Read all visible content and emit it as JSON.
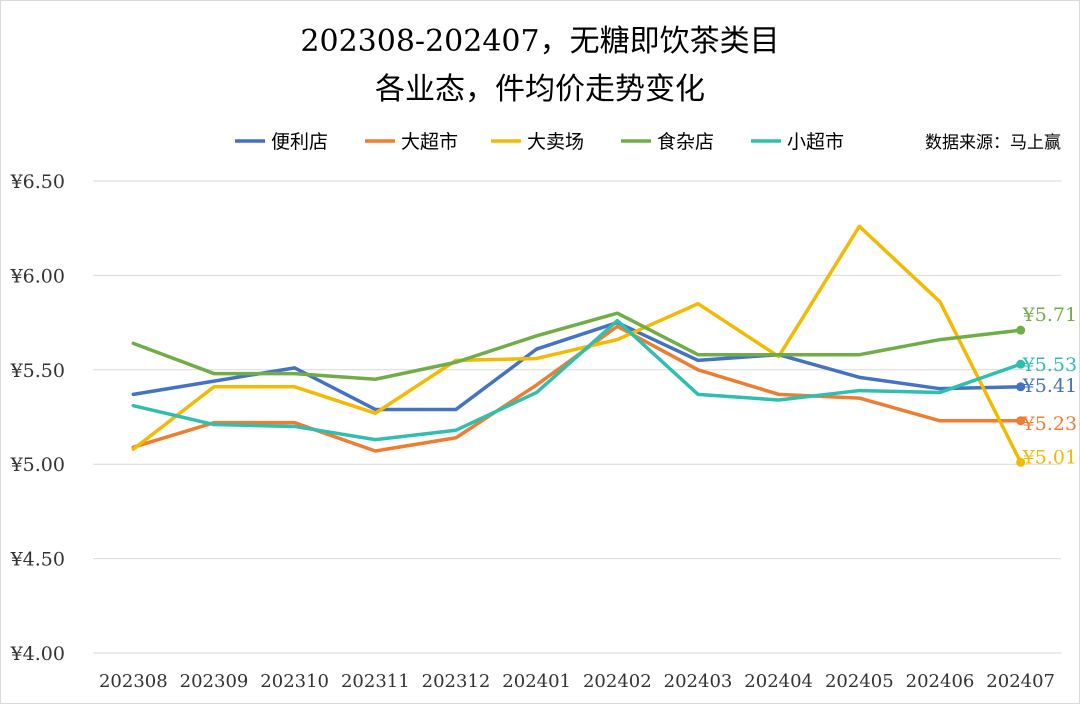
{
  "chart_data": {
    "type": "line",
    "title_line1": "202308-202407，无糖即饮茶类目",
    "title_line2": "各业态，件均价走势变化",
    "source": "数据来源：马上赢",
    "xlabel": "",
    "ylabel": "",
    "ylim": [
      4.0,
      6.5
    ],
    "yticks": [
      {
        "value": 6.5,
        "label": "¥6.50"
      },
      {
        "value": 6.0,
        "label": "¥6.00"
      },
      {
        "value": 5.5,
        "label": "¥5.50"
      },
      {
        "value": 5.0,
        "label": "¥5.00"
      },
      {
        "value": 4.5,
        "label": "¥4.50"
      },
      {
        "value": 4.0,
        "label": "¥4.00"
      }
    ],
    "grid": true,
    "legend_position": "top",
    "categories": [
      "202308",
      "202309",
      "202310",
      "202311",
      "202312",
      "202401",
      "202402",
      "202403",
      "202404",
      "202405",
      "202406",
      "202407"
    ],
    "series": [
      {
        "name": "便利店",
        "color": "#4472C4",
        "values": [
          5.37,
          5.44,
          5.51,
          5.29,
          5.29,
          5.61,
          5.75,
          5.55,
          5.58,
          5.46,
          5.4,
          5.41
        ],
        "end_label": "¥5.41"
      },
      {
        "name": "大超市",
        "color": "#ED7D31",
        "values": [
          5.09,
          5.22,
          5.22,
          5.07,
          5.14,
          5.42,
          5.73,
          5.5,
          5.37,
          5.35,
          5.23,
          5.23
        ],
        "end_label": "¥5.23"
      },
      {
        "name": "大卖场",
        "color": "#F2BA02",
        "values": [
          5.08,
          5.41,
          5.41,
          5.27,
          5.55,
          5.56,
          5.66,
          5.85,
          5.57,
          6.26,
          5.86,
          5.01
        ],
        "end_label": "¥5.01"
      },
      {
        "name": "食杂店",
        "color": "#70AD47",
        "values": [
          5.64,
          5.48,
          5.48,
          5.45,
          5.54,
          5.68,
          5.8,
          5.58,
          5.58,
          5.58,
          5.66,
          5.71
        ],
        "end_label": "¥5.71"
      },
      {
        "name": "小超市",
        "color": "#2EBFB0",
        "values": [
          5.31,
          5.21,
          5.2,
          5.13,
          5.18,
          5.38,
          5.76,
          5.37,
          5.34,
          5.39,
          5.38,
          5.53
        ],
        "end_label": "¥5.53"
      }
    ]
  }
}
